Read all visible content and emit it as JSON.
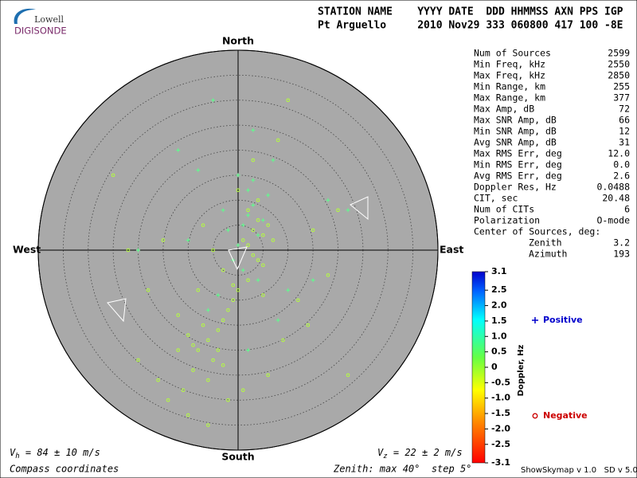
{
  "logo": {
    "top": "Lowell",
    "bottom": "DIGISONDE"
  },
  "header": {
    "line1": "STATION NAME    YYYY DATE  DDD HHMMSS AXN PPS IGP",
    "line2": "Pt Arguello     2010 Nov29 333 060800 417 100 -8E"
  },
  "stats": {
    "rows": [
      [
        "Num of Sources",
        "2599"
      ],
      [
        "Min Freq, kHz",
        "2550"
      ],
      [
        "Max Freq, kHz",
        "2850"
      ],
      [
        "Min Range, km",
        "255"
      ],
      [
        "Max Range, km",
        "377"
      ],
      [
        "Max Amp, dB",
        "72"
      ],
      [
        "Max SNR Amp, dB",
        "66"
      ],
      [
        "Min SNR Amp, dB",
        "12"
      ],
      [
        "Avg SNR Amp, dB",
        "31"
      ],
      [
        "Max RMS Err, deg",
        "12.0"
      ],
      [
        "Min RMS Err, deg",
        "0.0"
      ],
      [
        "Avg RMS Err, deg",
        "2.6"
      ],
      [
        "Doppler Res, Hz",
        "0.0488"
      ],
      [
        "CIT, sec",
        "20.48"
      ],
      [
        "Num of CITs",
        "6"
      ],
      [
        "Polarization",
        "O-mode"
      ],
      [
        "Center of Sources, deg:",
        ""
      ]
    ],
    "sub_rows": [
      [
        "Zenith",
        "3.2"
      ],
      [
        "Azimuth",
        "193"
      ]
    ]
  },
  "footer": {
    "vh_symbol": "V",
    "vh_sub": "h",
    "vh_text": " = 84 ± 10 m/s",
    "vz_symbol": "V",
    "vz_sub": "z",
    "vz_text": " = 22 ± 2 m/s",
    "left": "Compass coordinates",
    "middle": "Zenith: max 40°  step 5°",
    "right": "ShowSkymap v 1.0   SD v 5.0"
  },
  "chart_data": {
    "type": "skymap",
    "compass": {
      "north": "North",
      "south": "South",
      "east": "East",
      "west": "West"
    },
    "rlim": [
      0,
      40
    ],
    "rticks": [
      5,
      10,
      15,
      20,
      25,
      30,
      35,
      40
    ],
    "series": [
      {
        "name": "Negative",
        "marker": "o",
        "color": "#b4ff3c",
        "legend_color": "#cc0000",
        "x": [
          3,
          4,
          5,
          2,
          6,
          1,
          3,
          5,
          4,
          7,
          2,
          0,
          -1,
          -2,
          -3,
          -4,
          -6,
          -8,
          -7,
          -5,
          -9,
          -10,
          -6,
          -4,
          -3,
          -12,
          -8,
          -5,
          -7,
          -2,
          1,
          6,
          9,
          12,
          15,
          18,
          -15,
          -18,
          -20,
          -14,
          -10,
          -12,
          -6,
          -3,
          0,
          3,
          8,
          14,
          20,
          22,
          -22,
          -25,
          10,
          4,
          -16,
          -9,
          -11,
          -1,
          2,
          5
        ],
        "y": [
          4,
          6,
          3,
          8,
          5,
          2,
          -1,
          -3,
          10,
          2,
          -6,
          -8,
          -10,
          -12,
          -14,
          -16,
          -18,
          -20,
          -15,
          -22,
          -24,
          -17,
          -26,
          -20,
          -4,
          -13,
          -8,
          0,
          5,
          -30,
          -28,
          -25,
          -18,
          -10,
          4,
          -5,
          2,
          -8,
          -22,
          -30,
          -33,
          -20,
          -35,
          -23,
          12,
          18,
          22,
          -15,
          8,
          -25,
          0,
          15,
          30,
          -2,
          -26,
          -19,
          -28,
          -7,
          1,
          -9
        ]
      },
      {
        "name": "Positive",
        "marker": "+",
        "color": "#5cff8c",
        "legend_color": "#0000cc",
        "x": [
          1,
          2,
          3,
          4,
          0,
          -1,
          5,
          2,
          3,
          -2,
          6,
          1,
          4,
          -3,
          -8,
          -12,
          -20,
          22,
          -6,
          10,
          7,
          -4,
          0,
          3,
          -10,
          15,
          -5,
          8,
          2,
          18
        ],
        "y": [
          5,
          7,
          9,
          3,
          1,
          -2,
          6,
          12,
          14,
          4,
          11,
          -4,
          -6,
          8,
          16,
          20,
          0,
          8,
          -12,
          -8,
          18,
          -9,
          15,
          24,
          2,
          -6,
          30,
          -14,
          -20,
          10
        ]
      }
    ],
    "colorbar": {
      "label": "Doppler, Hz",
      "clim": [
        -3.1,
        3.1
      ],
      "ticks": [
        3.1,
        2.5,
        {
          "value": 2,
          "label": "2.0"
        },
        1.5,
        {
          "value": 1,
          "label": "1.0"
        },
        0.5,
        0,
        -0.5,
        {
          "value": -1,
          "label": "-1.0"
        },
        -1.5,
        {
          "value": -2,
          "label": "-2.0"
        },
        -2.5,
        -3.1
      ]
    }
  }
}
